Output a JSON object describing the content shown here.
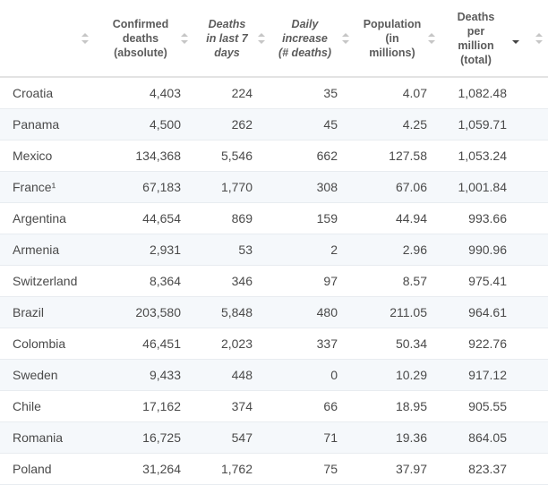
{
  "table": {
    "columns": [
      {
        "label": "",
        "italic": false
      },
      {
        "label": "Confirmed deaths (absolute)",
        "lines": [
          "Confirmed",
          "deaths",
          "(absolute)"
        ],
        "italic": false
      },
      {
        "label": "Deaths in last 7 days",
        "lines": [
          "Deaths",
          "in last 7",
          "days"
        ],
        "italic": true
      },
      {
        "label": "Daily increase (# deaths)",
        "lines": [
          "Daily",
          "increase",
          "(# deaths)"
        ],
        "italic": true
      },
      {
        "label": "Population (in millions)",
        "lines": [
          "Population",
          "(in",
          "millions)"
        ],
        "italic": false
      },
      {
        "label": "Deaths per million (total)",
        "lines": [
          "Deaths",
          "per",
          "million",
          "(total)"
        ],
        "italic": false
      }
    ],
    "sorted_column": "Deaths per million (total)",
    "sort_direction": "descending",
    "rows": [
      {
        "country": "Croatia",
        "confirmed": "4,403",
        "last7": "224",
        "daily": "35",
        "population": "4.07",
        "per_million": "1,082.48"
      },
      {
        "country": "Panama",
        "confirmed": "4,500",
        "last7": "262",
        "daily": "45",
        "population": "4.25",
        "per_million": "1,059.71"
      },
      {
        "country": "Mexico",
        "confirmed": "134,368",
        "last7": "5,546",
        "daily": "662",
        "population": "127.58",
        "per_million": "1,053.24"
      },
      {
        "country": "France¹",
        "confirmed": "67,183",
        "last7": "1,770",
        "daily": "308",
        "population": "67.06",
        "per_million": "1,001.84"
      },
      {
        "country": "Argentina",
        "confirmed": "44,654",
        "last7": "869",
        "daily": "159",
        "population": "44.94",
        "per_million": "993.66"
      },
      {
        "country": "Armenia",
        "confirmed": "2,931",
        "last7": "53",
        "daily": "2",
        "population": "2.96",
        "per_million": "990.96"
      },
      {
        "country": "Switzerland",
        "confirmed": "8,364",
        "last7": "346",
        "daily": "97",
        "population": "8.57",
        "per_million": "975.41"
      },
      {
        "country": "Brazil",
        "confirmed": "203,580",
        "last7": "5,848",
        "daily": "480",
        "population": "211.05",
        "per_million": "964.61"
      },
      {
        "country": "Colombia",
        "confirmed": "46,451",
        "last7": "2,023",
        "daily": "337",
        "population": "50.34",
        "per_million": "922.76"
      },
      {
        "country": "Sweden",
        "confirmed": "9,433",
        "last7": "448",
        "daily": "0",
        "population": "10.29",
        "per_million": "917.12"
      },
      {
        "country": "Chile",
        "confirmed": "17,162",
        "last7": "374",
        "daily": "66",
        "population": "18.95",
        "per_million": "905.55"
      },
      {
        "country": "Romania",
        "confirmed": "16,725",
        "last7": "547",
        "daily": "71",
        "population": "19.36",
        "per_million": "864.05"
      },
      {
        "country": "Poland",
        "confirmed": "31,264",
        "last7": "1,762",
        "daily": "75",
        "population": "37.97",
        "per_million": "823.37"
      }
    ]
  },
  "colors": {
    "row_alt": "#f5f8fb",
    "border": "#e8ecf0",
    "text": "#4a4a4a",
    "sort_inactive": "#c6c6c6",
    "sort_active": "#444444"
  },
  "icons": {
    "sort": "sort-arrows-icon",
    "sort_active": "sort-descending-icon"
  }
}
